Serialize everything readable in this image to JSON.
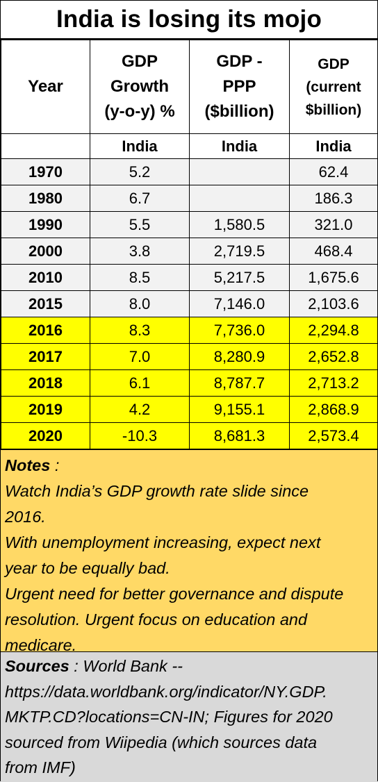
{
  "title": "India is losing its mojo",
  "headers": {
    "year": "Year",
    "growth": [
      "GDP",
      "Growth",
      "(y-o-y) %"
    ],
    "ppp": [
      "GDP -",
      "PPP",
      "($billion)"
    ],
    "current": [
      "GDP",
      "(current",
      "$billion)"
    ]
  },
  "subheaders": [
    "",
    "India",
    "India",
    "India"
  ],
  "rows": [
    {
      "year": "1970",
      "growth": "5.2",
      "ppp": "",
      "current": "62.4"
    },
    {
      "year": "1980",
      "growth": "6.7",
      "ppp": "",
      "current": "186.3"
    },
    {
      "year": "1990",
      "growth": "5.5",
      "ppp": "1,580.5",
      "current": "321.0"
    },
    {
      "year": "2000",
      "growth": "3.8",
      "ppp": "2,719.5",
      "current": "468.4"
    },
    {
      "year": "2010",
      "growth": "8.5",
      "ppp": "5,217.5",
      "current": "1,675.6"
    },
    {
      "year": "2015",
      "growth": "8.0",
      "ppp": "7,146.0",
      "current": "2,103.6"
    },
    {
      "year": "2016",
      "growth": "8.3",
      "ppp": "7,736.0",
      "current": "2,294.8"
    },
    {
      "year": "2017",
      "growth": "7.0",
      "ppp": "8,280.9",
      "current": "2,652.8"
    },
    {
      "year": "2018",
      "growth": "6.1",
      "ppp": "8,787.7",
      "current": "2,713.2"
    },
    {
      "year": "2019",
      "growth": "4.2",
      "ppp": "9,155.1",
      "current": "2,868.9"
    },
    {
      "year": "2020",
      "growth": "-10.3",
      "ppp": "8,681.3",
      "current": "2,573.4"
    }
  ],
  "notes": {
    "label": "Notes",
    "separator": " :",
    "lines": [
      "Watch India’s GDP growth rate slide since",
      "2016.",
      "With unemployment increasing, expect next",
      "year to be equally bad.",
      "Urgent need for better governance and dispute",
      "resolution. Urgent focus on education and",
      "medicare."
    ]
  },
  "sources": {
    "label": "Sources",
    "first_line": " : World Bank --",
    "lines": [
      "https://data.worldbank.org/indicator/NY.GDP.",
      "MKTP.CD?locations=CN-IN; Figures for 2020",
      "sourced from Wiipedia (which sources data",
      "from IMF)"
    ]
  },
  "colors": {
    "highlight_rows": "#ffff00",
    "base_rows": "#f2f2f2",
    "notes_bg": "#ffd966",
    "sources_bg": "#d9d9d9"
  }
}
